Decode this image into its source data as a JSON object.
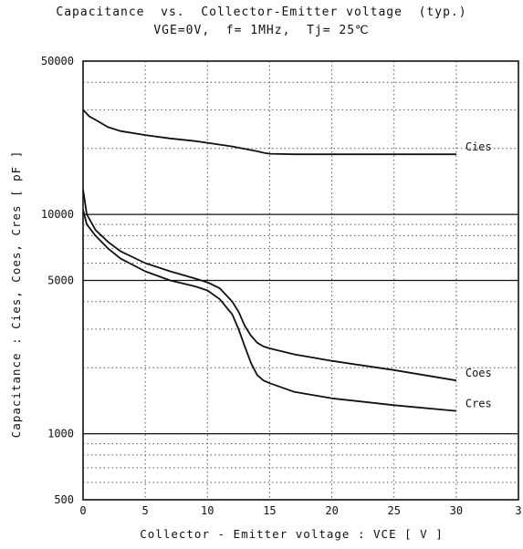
{
  "chart_data": {
    "type": "line",
    "title": "Capacitance  vs.  Collector-Emitter voltage  (typ.)",
    "subtitle": "VGE=0V,  f= 1MHz,  Tj= 25℃",
    "xlabel": "Collector - Emitter voltage  :  VCE  [ V ]",
    "ylabel": "Capacitance  :  Cies, Coes, Cres  [ pF ]",
    "xlim": [
      0,
      35
    ],
    "ylim": [
      500,
      50000
    ],
    "yscale": "log",
    "x_ticks": [
      "0",
      "5",
      "10",
      "15",
      "20",
      "25",
      "30",
      "3"
    ],
    "y_ticks": [
      "50000",
      "10000",
      "5000",
      "1000",
      "500"
    ],
    "y_tick_values": [
      50000,
      10000,
      5000,
      1000,
      500
    ],
    "grid": "dotted",
    "legend": "inline labels at line ends",
    "series": [
      {
        "name": "Cies",
        "x": [
          0,
          0.5,
          1,
          2,
          3,
          5,
          7,
          9,
          10,
          11,
          12,
          13,
          14,
          14.5,
          15,
          17,
          20,
          25,
          30
        ],
        "y": [
          30000,
          28000,
          27000,
          25000,
          24000,
          23000,
          22200,
          21600,
          21200,
          20800,
          20400,
          19900,
          19400,
          19100,
          18900,
          18800,
          18800,
          18800,
          18800
        ]
      },
      {
        "name": "Coes",
        "x": [
          0,
          0.3,
          1,
          2,
          3,
          5,
          7,
          9,
          10,
          11,
          12,
          12.5,
          13,
          13.5,
          14,
          14.5,
          15,
          17,
          20,
          25,
          30
        ],
        "y": [
          13000,
          10000,
          8500,
          7500,
          6800,
          6000,
          5500,
          5100,
          4900,
          4600,
          4000,
          3600,
          3100,
          2800,
          2600,
          2500,
          2450,
          2300,
          2150,
          1950,
          1750
        ]
      },
      {
        "name": "Cres",
        "x": [
          0,
          0.3,
          1,
          2,
          3,
          5,
          7,
          9,
          10,
          11,
          12,
          12.5,
          13,
          13.5,
          14,
          14.5,
          15,
          17,
          20,
          25,
          30
        ],
        "y": [
          10500,
          9000,
          8000,
          7000,
          6300,
          5500,
          5000,
          4700,
          4500,
          4100,
          3500,
          3000,
          2500,
          2100,
          1850,
          1750,
          1700,
          1550,
          1450,
          1350,
          1270
        ]
      }
    ]
  }
}
